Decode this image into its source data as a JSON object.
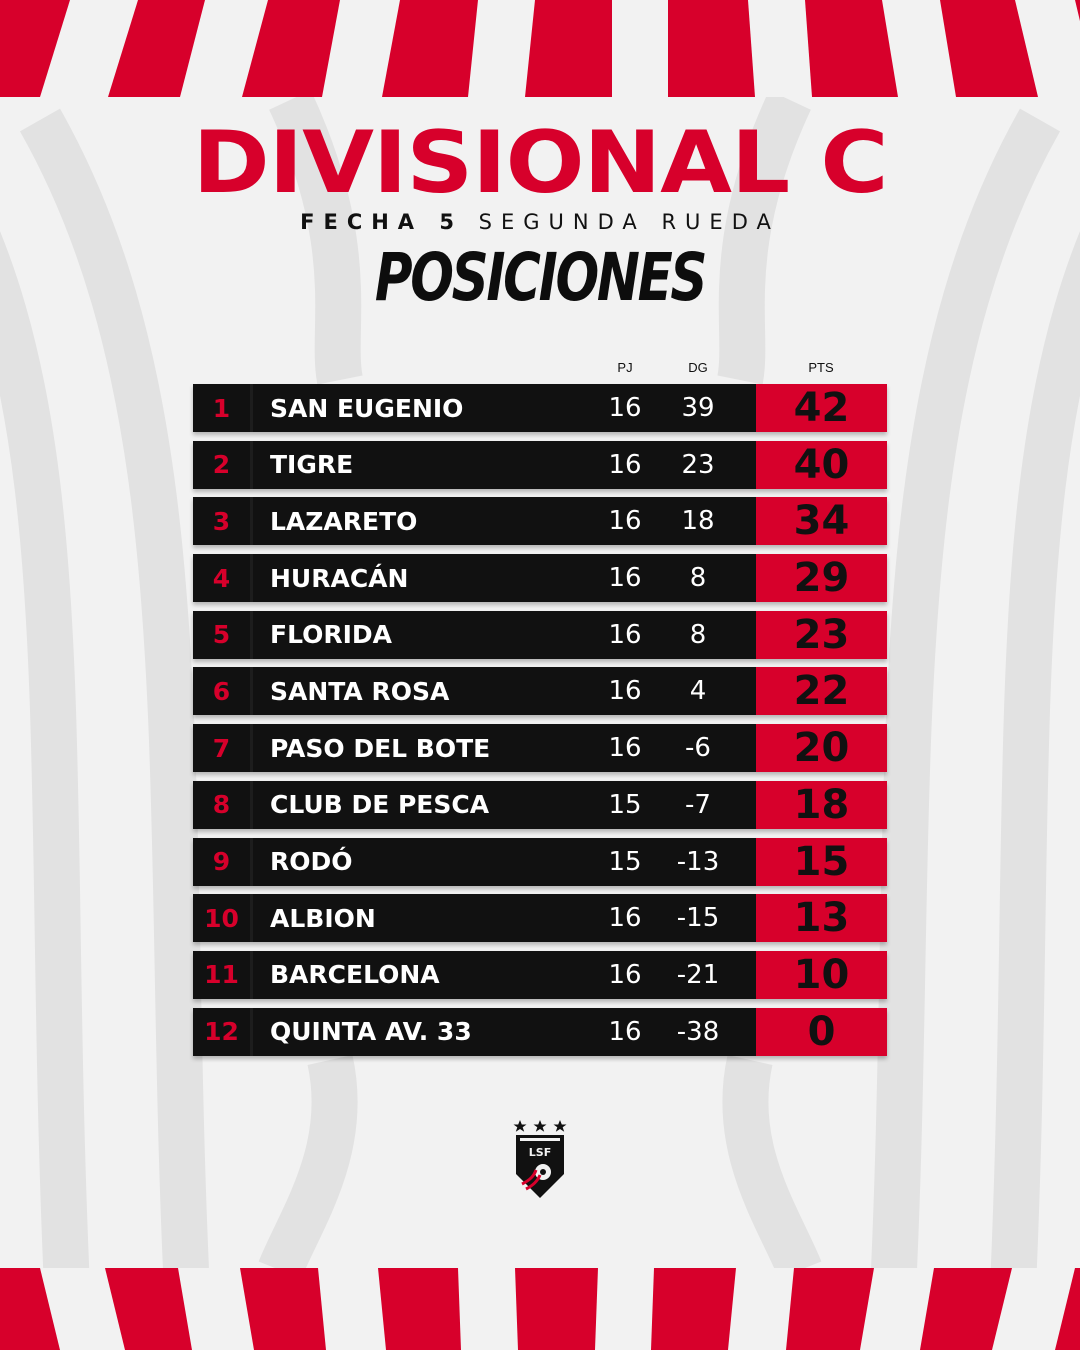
{
  "header": {
    "title": "DIVISIONAL C",
    "subtitle_bold": "FECHA 5",
    "subtitle_rest": "SEGUNDA RUEDA",
    "section": "POSICIONES"
  },
  "columns": {
    "pj": "PJ",
    "dg": "DG",
    "pts": "PTS"
  },
  "rows": [
    {
      "pos": "1",
      "team": "SAN EUGENIO",
      "pj": "16",
      "dg": "39",
      "pts": "42"
    },
    {
      "pos": "2",
      "team": "TIGRE",
      "pj": "16",
      "dg": "23",
      "pts": "40"
    },
    {
      "pos": "3",
      "team": "LAZARETO",
      "pj": "16",
      "dg": "18",
      "pts": "34"
    },
    {
      "pos": "4",
      "team": "HURACÁN",
      "pj": "16",
      "dg": "8",
      "pts": "29"
    },
    {
      "pos": "5",
      "team": "FLORIDA",
      "pj": "16",
      "dg": "8",
      "pts": "23"
    },
    {
      "pos": "6",
      "team": "SANTA ROSA",
      "pj": "16",
      "dg": "4",
      "pts": "22"
    },
    {
      "pos": "7",
      "team": "PASO DEL BOTE",
      "pj": "16",
      "dg": "-6",
      "pts": "20"
    },
    {
      "pos": "8",
      "team": "CLUB DE PESCA",
      "pj": "15",
      "dg": "-7",
      "pts": "18"
    },
    {
      "pos": "9",
      "team": "RODÓ",
      "pj": "15",
      "dg": "-13",
      "pts": "15"
    },
    {
      "pos": "10",
      "team": "ALBION",
      "pj": "16",
      "dg": "-15",
      "pts": "13"
    },
    {
      "pos": "11",
      "team": "BARCELONA",
      "pj": "16",
      "dg": "-21",
      "pts": "10"
    },
    {
      "pos": "12",
      "team": "QUINTA AV. 33",
      "pj": "16",
      "dg": "-38",
      "pts": "0"
    }
  ],
  "logo": {
    "text": "LSF",
    "icon": "league-shield-logo"
  },
  "colors": {
    "red": "#d7002b",
    "dark": "#111111",
    "background": "#f2f2f2",
    "stripe": "#e2e2e2"
  }
}
